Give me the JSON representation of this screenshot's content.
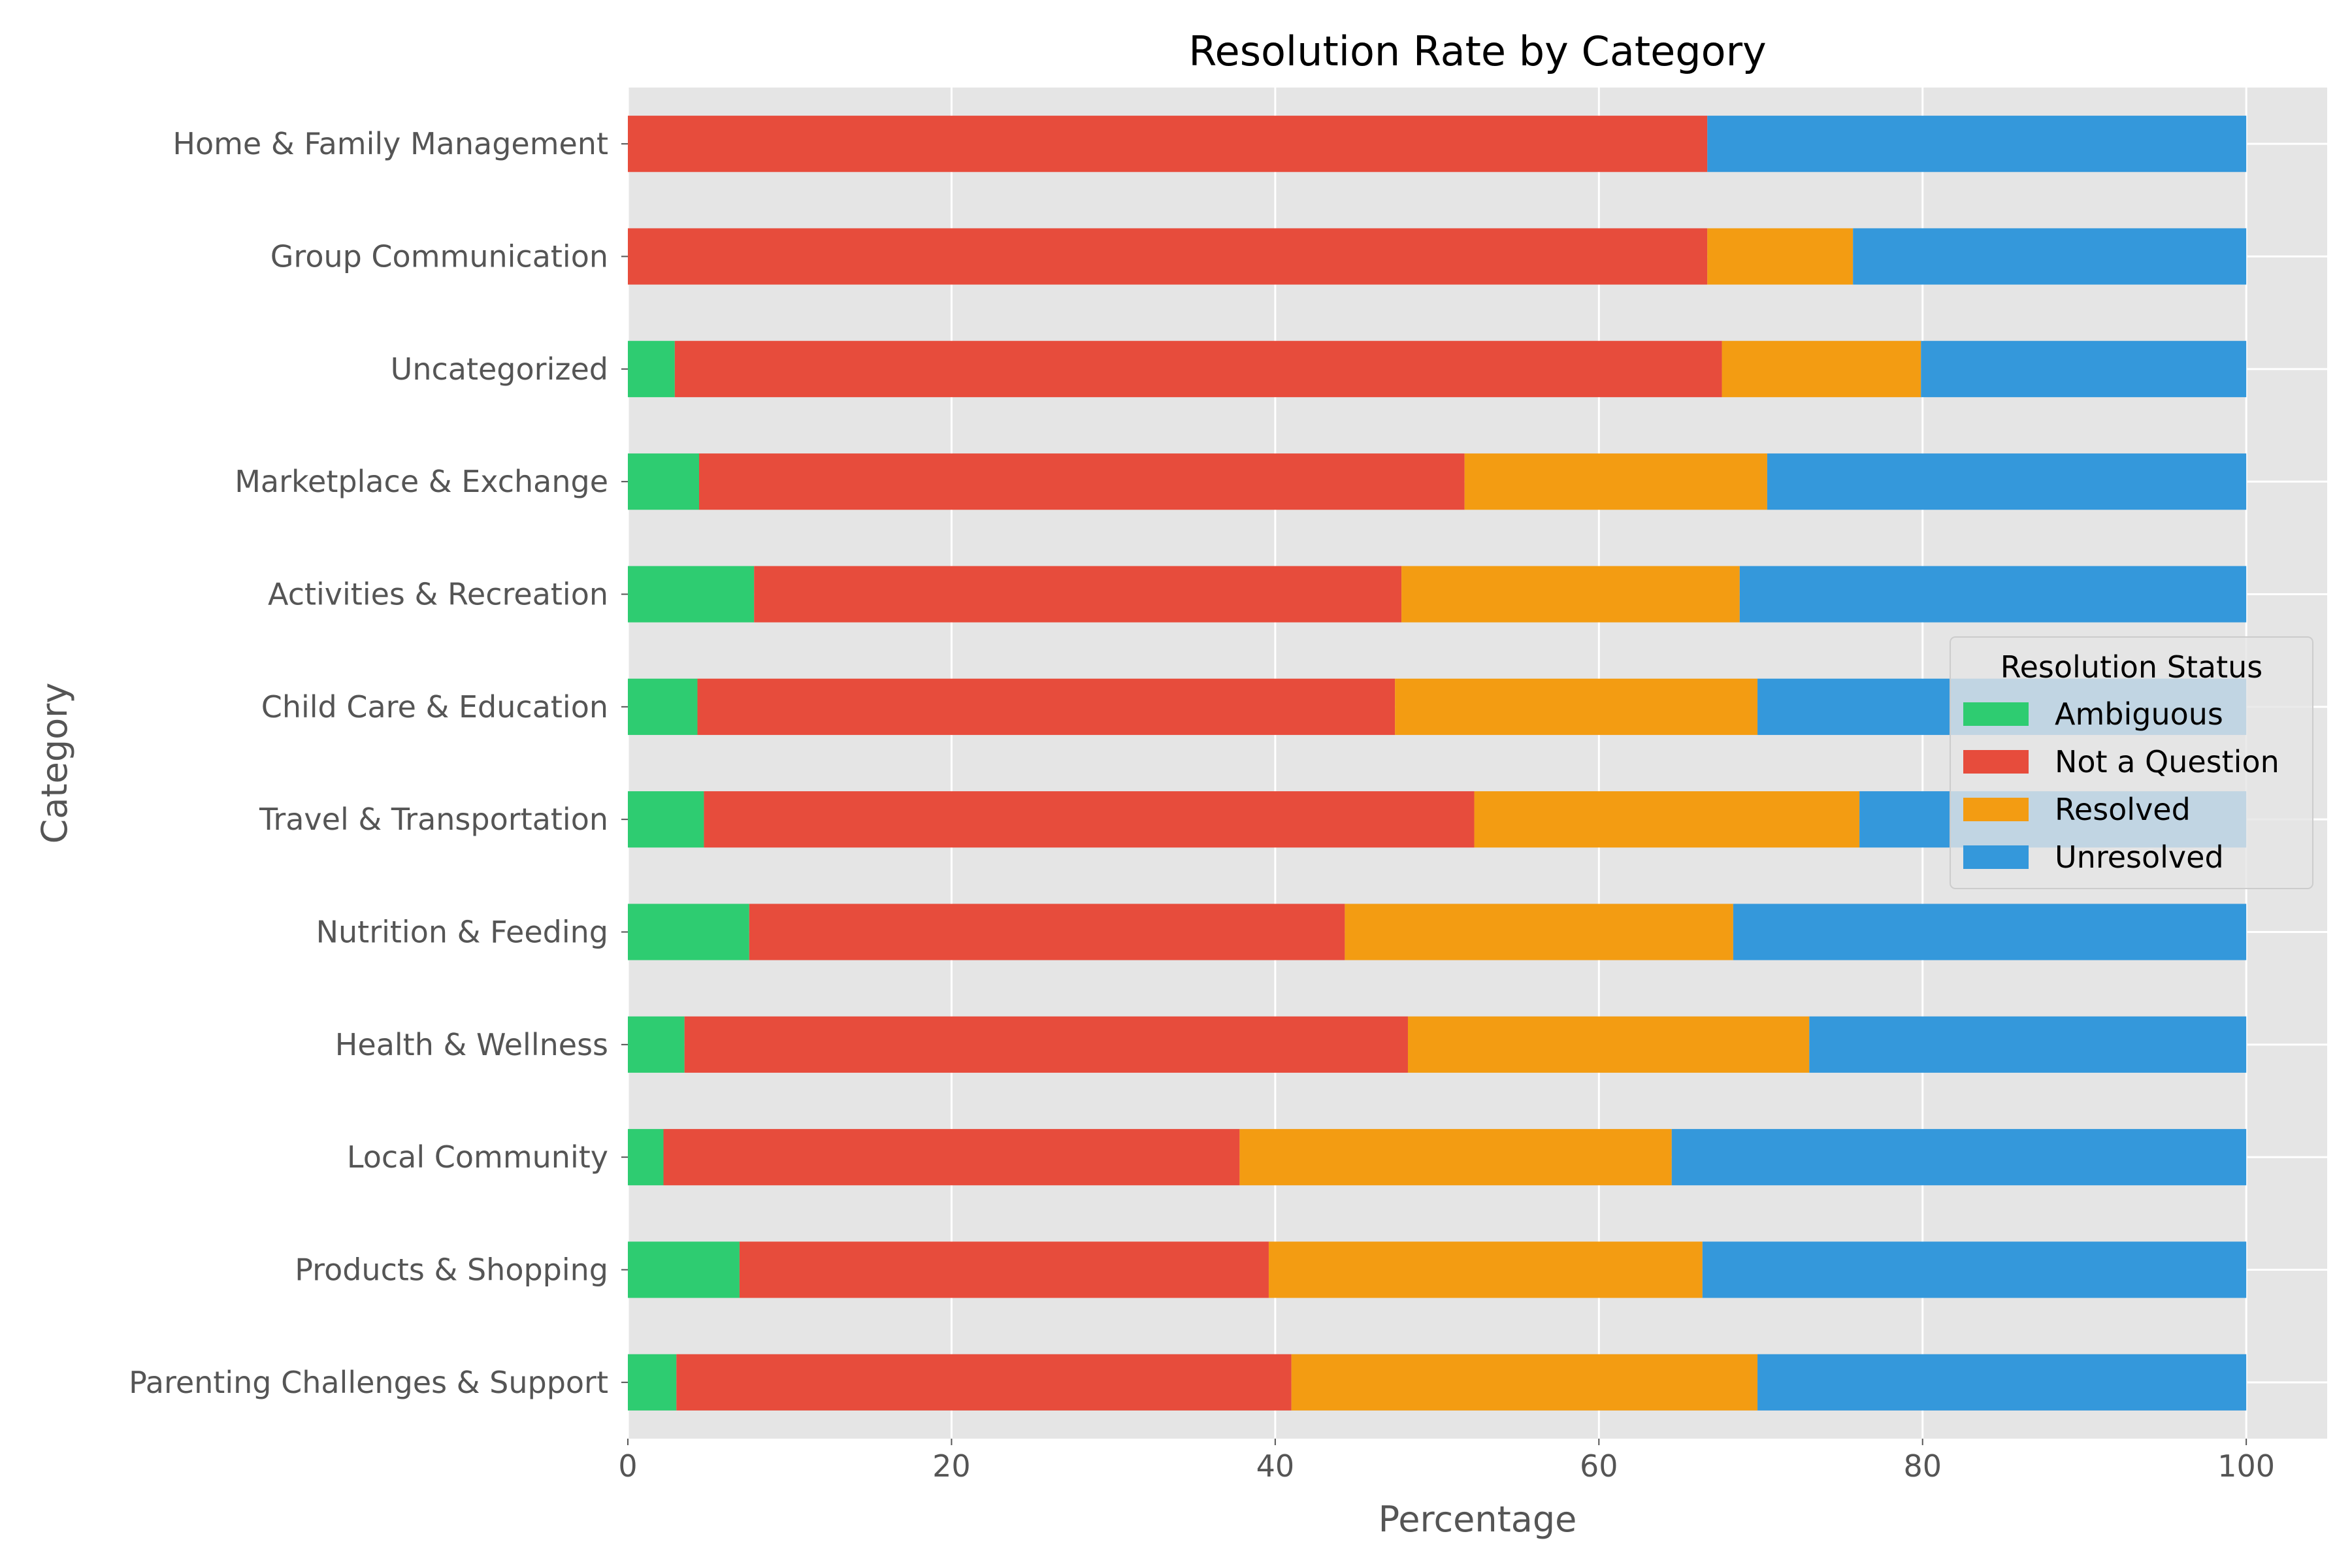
{
  "chart_data": {
    "type": "bar",
    "orientation": "horizontal",
    "stacked": true,
    "title": "Resolution Rate by Category",
    "xlabel": "Percentage",
    "ylabel": "Category",
    "xlim": [
      0,
      105
    ],
    "xticks": [
      0,
      20,
      40,
      60,
      80,
      100
    ],
    "grid": true,
    "categories": [
      "Home & Family Management",
      "Group Communication",
      "Uncategorized",
      "Marketplace & Exchange",
      "Activities & Recreation",
      "Child Care & Education",
      "Travel & Transportation",
      "Nutrition & Feeding",
      "Health & Wellness",
      "Local Community",
      "Products & Shopping",
      "Parenting Challenges & Support"
    ],
    "series": [
      {
        "name": "Ambiguous",
        "color": "#2ecc71",
        "values": [
          0,
          0,
          2.9,
          4.4,
          7.8,
          4.3,
          4.7,
          7.5,
          3.5,
          2.2,
          6.9,
          3.0
        ]
      },
      {
        "name": "Not a Question",
        "color": "#e74c3c",
        "values": [
          66.7,
          66.7,
          64.7,
          47.3,
          40.0,
          43.1,
          47.6,
          36.8,
          44.7,
          35.6,
          32.7,
          38.0
        ]
      },
      {
        "name": "Resolved",
        "color": "#f39c12",
        "values": [
          0,
          9.0,
          12.3,
          18.7,
          20.9,
          22.4,
          23.8,
          24.0,
          24.8,
          26.7,
          26.8,
          28.8
        ]
      },
      {
        "name": "Unresolved",
        "color": "#3498db",
        "values": [
          33.3,
          24.3,
          20.1,
          29.6,
          31.3,
          30.2,
          23.9,
          31.7,
          27.0,
          35.5,
          33.6,
          30.2
        ]
      }
    ],
    "legend": {
      "title": "Resolution Status",
      "position": "center-right"
    }
  }
}
